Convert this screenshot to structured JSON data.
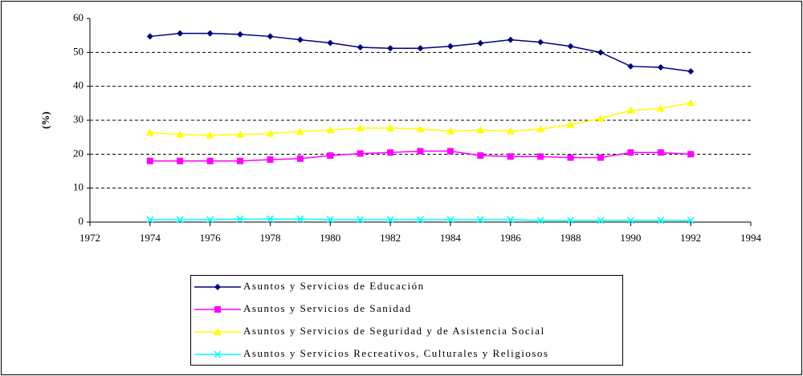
{
  "chart_data": {
    "type": "line",
    "ylabel": "(%)",
    "x": [
      1974,
      1975,
      1976,
      1977,
      1978,
      1979,
      1980,
      1981,
      1982,
      1983,
      1984,
      1985,
      1986,
      1987,
      1988,
      1989,
      1990,
      1991,
      1992
    ],
    "series": [
      {
        "name": "Asuntos y Servicios de Educación",
        "color": "#000080",
        "marker": "diamond",
        "values": [
          54.7,
          55.6,
          55.6,
          55.3,
          54.7,
          53.7,
          52.8,
          51.5,
          51.2,
          51.2,
          51.8,
          52.7,
          53.7,
          53.0,
          51.8,
          50.0,
          45.9,
          45.6,
          44.4
        ]
      },
      {
        "name": "Asuntos y Servicios de Sanidad",
        "color": "#ff00ff",
        "marker": "square",
        "values": [
          18.0,
          18.0,
          18.0,
          18.0,
          18.4,
          18.7,
          19.6,
          20.2,
          20.5,
          20.9,
          20.9,
          19.6,
          19.3,
          19.3,
          19.0,
          19.0,
          20.5,
          20.5,
          20.0
        ]
      },
      {
        "name": "Asuntos y Servicios de Seguridad y de Asistencia Social",
        "color": "#ffff00",
        "marker": "triangle",
        "values": [
          26.4,
          25.8,
          25.6,
          25.8,
          26.1,
          26.7,
          27.1,
          27.7,
          27.7,
          27.4,
          26.8,
          27.1,
          26.8,
          27.4,
          28.7,
          30.5,
          32.9,
          33.5,
          35.1
        ]
      },
      {
        "name": "Asuntos y Servicios Recreativos, Culturales y Religiosos",
        "color": "#00ffff",
        "marker": "x",
        "values": [
          0.7,
          0.7,
          0.7,
          0.9,
          0.9,
          0.9,
          0.7,
          0.7,
          0.7,
          0.7,
          0.7,
          0.7,
          0.7,
          0.5,
          0.5,
          0.5,
          0.5,
          0.5,
          0.5
        ]
      }
    ],
    "xlim": [
      1972,
      1994
    ],
    "xticks": [
      1972,
      1974,
      1976,
      1978,
      1980,
      1982,
      1984,
      1986,
      1988,
      1990,
      1992,
      1994
    ],
    "ylim": [
      0,
      60
    ],
    "yticks": [
      0,
      10,
      20,
      30,
      40,
      50,
      60
    ],
    "grid": true,
    "legend": "bottom"
  }
}
